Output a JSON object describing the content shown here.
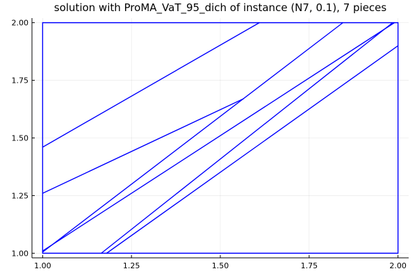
{
  "chart_data": {
    "type": "line",
    "title": "solution with ProMA_VaT_95_dich of instance (N7, 0.1), 7 pieces",
    "xlabel": "",
    "ylabel": "",
    "xlim": [
      0.97,
      2.03
    ],
    "ylim": [
      0.98,
      2.02
    ],
    "xticks": [
      1.0,
      1.25,
      1.5,
      1.75,
      2.0
    ],
    "xtick_labels": [
      "1.00",
      "1.25",
      "1.50",
      "1.75",
      "2.00"
    ],
    "yticks": [
      1.0,
      1.25,
      1.5,
      1.75,
      2.0
    ],
    "ytick_labels": [
      "1.00",
      "1.25",
      "1.50",
      "1.75",
      "2.00"
    ],
    "grid": true,
    "legend": "none",
    "line_color": "#0000ff",
    "series": [
      {
        "x": [
          1.0,
          2.0,
          2.0,
          1.0,
          1.0
        ],
        "y": [
          1.0,
          1.0,
          2.0,
          2.0,
          1.0
        ]
      },
      {
        "x": [
          1.0,
          1.61
        ],
        "y": [
          1.46,
          2.0
        ]
      },
      {
        "x": [
          1.0,
          1.565
        ],
        "y": [
          1.26,
          1.67
        ]
      },
      {
        "x": [
          1.0,
          1.845
        ],
        "y": [
          1.005,
          2.0
        ]
      },
      {
        "x": [
          1.0,
          1.99
        ],
        "y": [
          1.01,
          2.0
        ]
      },
      {
        "x": [
          1.165,
          1.985
        ],
        "y": [
          1.0,
          2.0
        ]
      },
      {
        "x": [
          1.18,
          2.0
        ],
        "y": [
          1.0,
          1.9
        ]
      }
    ]
  }
}
